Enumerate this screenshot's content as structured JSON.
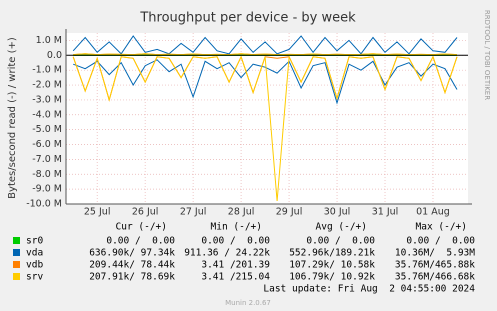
{
  "chart_data": {
    "type": "line",
    "title": "Throughput per device - by week",
    "y_label": "Bytes/second read (-) / write (+)",
    "side_text": "RRDTOOL / TOBI OETIKER",
    "x": [
      24.5,
      24.75,
      25,
      25.25,
      25.5,
      25.75,
      26,
      26.25,
      26.5,
      26.75,
      27,
      27.25,
      27.5,
      27.75,
      28,
      28.25,
      28.5,
      28.75,
      29,
      29.25,
      29.5,
      29.75,
      30,
      30.25,
      30.5,
      30.75,
      31,
      31.25,
      31.5,
      31.75,
      32,
      32.25,
      32.5
    ],
    "xlim": [
      24.35,
      32.73
    ],
    "xticks": [
      {
        "value": 25,
        "label": "25 Jul"
      },
      {
        "value": 26,
        "label": "26 Jul"
      },
      {
        "value": 27,
        "label": "27 Jul"
      },
      {
        "value": 28,
        "label": "28 Jul"
      },
      {
        "value": 29,
        "label": "29 Jul"
      },
      {
        "value": 30,
        "label": "30 Jul"
      },
      {
        "value": 31,
        "label": "31 Jul"
      },
      {
        "value": 32,
        "label": "01 Aug"
      }
    ],
    "ylim": [
      -10000000,
      1500000
    ],
    "yticks": [
      {
        "value": 1000000,
        "label": "1.0 M"
      },
      {
        "value": 0,
        "label": "0.0"
      },
      {
        "value": -1000000,
        "label": "-1.0 M"
      },
      {
        "value": -2000000,
        "label": "-2.0 M"
      },
      {
        "value": -3000000,
        "label": "-3.0 M"
      },
      {
        "value": -4000000,
        "label": "-4.0 M"
      },
      {
        "value": -5000000,
        "label": "-5.0 M"
      },
      {
        "value": -6000000,
        "label": "-6.0 M"
      },
      {
        "value": -7000000,
        "label": "-7.0 M"
      },
      {
        "value": -8000000,
        "label": "-8.0 M"
      },
      {
        "value": -9000000,
        "label": "-9.0 M"
      },
      {
        "value": -10000000,
        "label": "-10.0 M"
      }
    ],
    "grid": true,
    "series": [
      {
        "name": "sr0",
        "color": "#00cc00",
        "read": [
          0,
          0,
          0,
          0,
          0,
          0,
          0,
          0,
          0,
          0,
          0,
          0,
          0,
          0,
          0,
          0,
          0,
          0,
          0,
          0,
          0,
          0,
          0,
          0,
          0,
          0,
          0,
          0,
          0,
          0,
          0,
          0,
          0
        ],
        "write": [
          0,
          0,
          0,
          0,
          0,
          0,
          0,
          0,
          0,
          0,
          0,
          0,
          0,
          0,
          0,
          0,
          0,
          0,
          0,
          0,
          0,
          0,
          0,
          0,
          0,
          0,
          0,
          0,
          0,
          0,
          0,
          0,
          0
        ]
      },
      {
        "name": "vda",
        "color": "#0066b3",
        "read": [
          -600000,
          -900000,
          -400000,
          -1300000,
          -500000,
          -2000000,
          -700000,
          -300000,
          -1100000,
          -600000,
          -2800000,
          -400000,
          -900000,
          -500000,
          -1500000,
          -600000,
          -800000,
          -1200000,
          -400000,
          -2200000,
          -700000,
          -500000,
          -3200000,
          -600000,
          -1000000,
          -400000,
          -2000000,
          -800000,
          -500000,
          -1400000,
          -600000,
          -900000,
          -2300000
        ],
        "write": [
          300000,
          1200000,
          200000,
          900000,
          100000,
          1300000,
          200000,
          400000,
          100000,
          800000,
          200000,
          1200000,
          300000,
          100000,
          1100000,
          200000,
          900000,
          100000,
          400000,
          1300000,
          200000,
          1200000,
          300000,
          1000000,
          100000,
          1200000,
          200000,
          900000,
          100000,
          1100000,
          300000,
          200000,
          1200000
        ]
      },
      {
        "name": "vdb",
        "color": "#ff8000",
        "read": [
          -100000,
          -2400000,
          -200000,
          -3000000,
          -100000,
          -200000,
          -1800000,
          -100000,
          -200000,
          -1500000,
          -100000,
          -200000,
          -100000,
          -1800000,
          -100000,
          -2500000,
          -100000,
          -200000,
          -100000,
          -1800000,
          -100000,
          -200000,
          -2900000,
          -100000,
          -200000,
          -100000,
          -2300000,
          -100000,
          -200000,
          -1700000,
          -100000,
          -2500000,
          -100000
        ],
        "write": [
          50000,
          100000,
          50000,
          80000,
          60000,
          50000,
          100000,
          50000,
          70000,
          50000,
          90000,
          50000,
          60000,
          50000,
          100000,
          50000,
          80000,
          50000,
          60000,
          50000,
          90000,
          50000,
          70000,
          50000,
          60000,
          100000,
          50000,
          80000,
          50000,
          60000,
          50000,
          90000,
          50000
        ]
      },
      {
        "name": "srv",
        "color": "#ffcc00",
        "read": [
          -100000,
          -2400000,
          -200000,
          -3000000,
          -100000,
          -200000,
          -1800000,
          -100000,
          -200000,
          -1500000,
          -100000,
          -200000,
          -100000,
          -1800000,
          -100000,
          -2500000,
          -100000,
          -9800000,
          -100000,
          -1800000,
          -100000,
          -200000,
          -2900000,
          -100000,
          -200000,
          -100000,
          -2300000,
          -100000,
          -200000,
          -1700000,
          -100000,
          -2500000,
          -100000
        ],
        "write": [
          50000,
          100000,
          50000,
          80000,
          60000,
          50000,
          100000,
          50000,
          70000,
          50000,
          90000,
          50000,
          60000,
          50000,
          100000,
          50000,
          80000,
          50000,
          60000,
          50000,
          90000,
          50000,
          70000,
          50000,
          60000,
          100000,
          50000,
          80000,
          50000,
          60000,
          50000,
          90000,
          50000
        ]
      }
    ],
    "legend_table": {
      "headers": [
        "Cur (-/+)",
        "Min (-/+)",
        "Avg (-/+)",
        "Max (-/+)"
      ],
      "rows": [
        [
          "0.00 /  0.00",
          "0.00 /  0.00",
          "0.00 /  0.00",
          "0.00 /  0.00"
        ],
        [
          "636.90k/ 97.34k",
          "911.36 / 24.22k",
          "552.96k/189.21k",
          "10.36M/  5.93M"
        ],
        [
          "209.44k/ 78.44k",
          "3.41 /201.39",
          "107.29k/ 10.58k",
          "35.76M/465.88k"
        ],
        [
          "207.91k/ 78.69k",
          "3.41 /215.04",
          "106.79k/ 10.92k",
          "35.76M/466.68k"
        ]
      ]
    },
    "last_update": "Last update: Fri Aug  2 04:55:00 2024",
    "footer": "Munin 2.0.67"
  }
}
